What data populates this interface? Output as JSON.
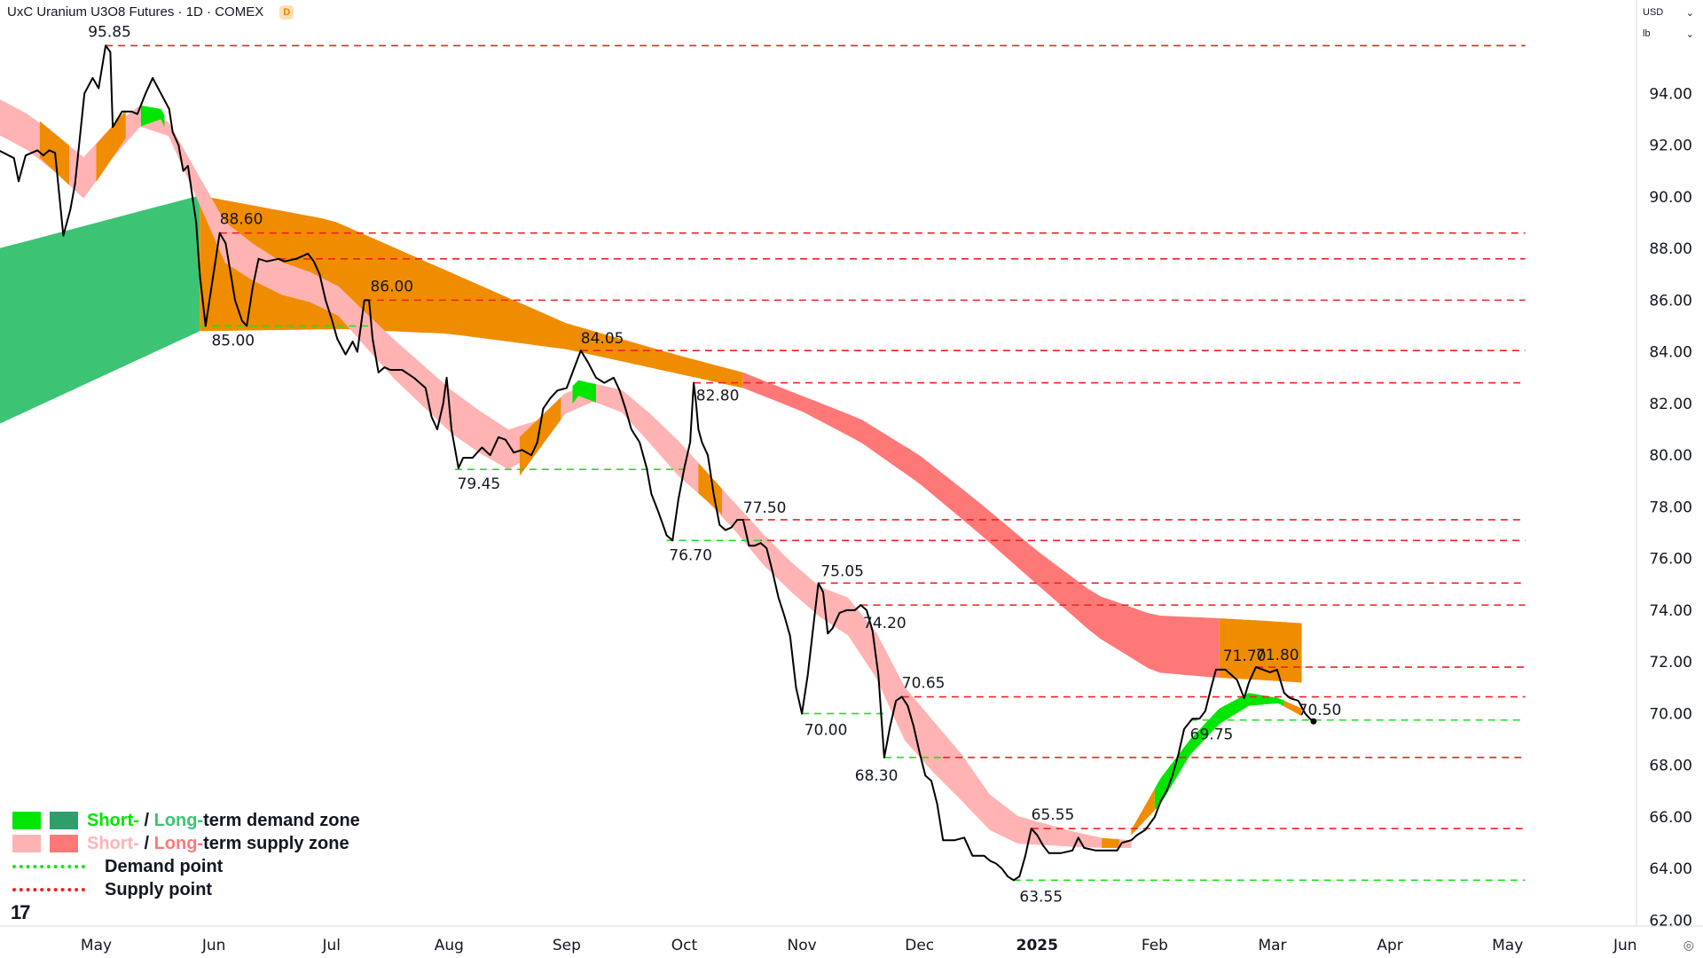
{
  "header": {
    "symbol": "UxC Uranium U3O8 Futures · 1D · COMEX",
    "badge": "D"
  },
  "price_scale": {
    "currency": "USD",
    "unit": "lb"
  },
  "legend": {
    "demand_short": "Short-",
    "demand_slash": " / ",
    "demand_long": "Long-",
    "demand_rest": "term demand zone",
    "supply_short": "Short-",
    "supply_slash": " / ",
    "supply_long": "Long-",
    "supply_rest": "term supply zone",
    "demand_point": "Demand point",
    "supply_point": "Supply point"
  },
  "logo": "17",
  "colors": {
    "price_line": "#000000",
    "short_demand": "#00e600",
    "long_demand": "#3cc474",
    "short_supply": "#ffb3b3",
    "long_supply": "#ff7878",
    "transition": "#f08c00",
    "demand_level": "#22dd22",
    "supply_level": "#ee2222"
  },
  "chart_data": {
    "type": "line",
    "title": "UxC Uranium U3O8 Futures · 1D · COMEX",
    "ylim": [
      62,
      96
    ],
    "y_ticks": [
      "62.00",
      "64.00",
      "66.00",
      "68.00",
      "70.00",
      "72.00",
      "74.00",
      "76.00",
      "78.00",
      "80.00",
      "82.00",
      "84.00",
      "86.00",
      "88.00",
      "90.00",
      "92.00",
      "94.00"
    ],
    "x_ticks": [
      "May",
      "Jun",
      "Jul",
      "Aug",
      "Sep",
      "Oct",
      "Nov",
      "Dec",
      "2025",
      "Feb",
      "Mar",
      "Apr",
      "May",
      "Jun"
    ],
    "x_tick_pos": [
      0.5,
      1.5,
      2.5,
      3.5,
      4.5,
      5.5,
      6.5,
      7.5,
      8.5,
      9.5,
      10.5,
      11.5,
      12.5,
      13.5
    ],
    "x_range": [
      -0.33,
      13.5
    ],
    "price": [
      [
        -0.33,
        91.8
      ],
      [
        -0.2,
        91.5
      ],
      [
        -0.16,
        90.6
      ],
      [
        -0.1,
        91.6
      ],
      [
        0.0,
        91.8
      ],
      [
        0.05,
        91.6
      ],
      [
        0.1,
        91.8
      ],
      [
        0.15,
        91.7
      ],
      [
        0.22,
        88.5
      ],
      [
        0.28,
        89.5
      ],
      [
        0.32,
        90.5
      ],
      [
        0.4,
        94
      ],
      [
        0.47,
        94.6
      ],
      [
        0.52,
        94.2
      ],
      [
        0.58,
        95.85
      ],
      [
        0.62,
        95.6
      ],
      [
        0.64,
        92.7
      ],
      [
        0.72,
        93.3
      ],
      [
        0.8,
        93.3
      ],
      [
        0.85,
        93.2
      ],
      [
        0.92,
        94
      ],
      [
        0.98,
        94.6
      ],
      [
        1.05,
        94
      ],
      [
        1.12,
        93.4
      ],
      [
        1.15,
        92.5
      ],
      [
        1.2,
        92
      ],
      [
        1.24,
        91
      ],
      [
        1.28,
        91.2
      ],
      [
        1.35,
        89
      ],
      [
        1.38,
        87
      ],
      [
        1.43,
        85
      ],
      [
        1.48,
        86.5
      ],
      [
        1.55,
        88.6
      ],
      [
        1.6,
        88.2
      ],
      [
        1.68,
        86
      ],
      [
        1.74,
        85.2
      ],
      [
        1.78,
        85
      ],
      [
        1.83,
        86.5
      ],
      [
        1.88,
        87.6
      ],
      [
        1.95,
        87.5
      ],
      [
        2.05,
        87.6
      ],
      [
        2.1,
        87.5
      ],
      [
        2.2,
        87.6
      ],
      [
        2.3,
        87.8
      ],
      [
        2.35,
        87.5
      ],
      [
        2.4,
        87
      ],
      [
        2.45,
        86
      ],
      [
        2.5,
        85.3
      ],
      [
        2.55,
        84.5
      ],
      [
        2.62,
        83.9
      ],
      [
        2.68,
        84.4
      ],
      [
        2.72,
        84
      ],
      [
        2.78,
        86
      ],
      [
        2.82,
        86
      ],
      [
        2.85,
        84.5
      ],
      [
        2.9,
        83.2
      ],
      [
        2.95,
        83.4
      ],
      [
        3.0,
        83.3
      ],
      [
        3.1,
        83.3
      ],
      [
        3.2,
        83
      ],
      [
        3.3,
        82.6
      ],
      [
        3.35,
        81.5
      ],
      [
        3.4,
        81
      ],
      [
        3.45,
        82
      ],
      [
        3.48,
        83
      ],
      [
        3.52,
        81
      ],
      [
        3.58,
        79.5
      ],
      [
        3.62,
        79.9
      ],
      [
        3.7,
        79.9
      ],
      [
        3.78,
        80.3
      ],
      [
        3.85,
        80
      ],
      [
        3.92,
        80.7
      ],
      [
        3.98,
        80.6
      ],
      [
        4.05,
        80.1
      ],
      [
        4.12,
        80.2
      ],
      [
        4.2,
        80
      ],
      [
        4.25,
        80.5
      ],
      [
        4.3,
        81.8
      ],
      [
        4.36,
        82.2
      ],
      [
        4.42,
        82.5
      ],
      [
        4.5,
        82.6
      ],
      [
        4.55,
        83.2
      ],
      [
        4.62,
        84.05
      ],
      [
        4.68,
        83.6
      ],
      [
        4.75,
        83
      ],
      [
        4.82,
        82.8
      ],
      [
        4.9,
        83
      ],
      [
        4.95,
        82.5
      ],
      [
        5.0,
        81.8
      ],
      [
        5.05,
        81
      ],
      [
        5.12,
        80.5
      ],
      [
        5.18,
        79.5
      ],
      [
        5.22,
        78.5
      ],
      [
        5.28,
        77.8
      ],
      [
        5.35,
        76.9
      ],
      [
        5.4,
        76.7
      ],
      [
        5.45,
        78.3
      ],
      [
        5.5,
        79.5
      ],
      [
        5.55,
        80.5
      ],
      [
        5.58,
        82.8
      ],
      [
        5.6,
        82
      ],
      [
        5.62,
        81
      ],
      [
        5.65,
        80.5
      ],
      [
        5.7,
        80
      ],
      [
        5.75,
        78.5
      ],
      [
        5.8,
        77.3
      ],
      [
        5.85,
        77.1
      ],
      [
        5.9,
        77.2
      ],
      [
        5.95,
        77.5
      ],
      [
        6.0,
        77.5
      ],
      [
        6.05,
        76.5
      ],
      [
        6.1,
        76.5
      ],
      [
        6.15,
        76.6
      ],
      [
        6.2,
        76.4
      ],
      [
        6.25,
        75.5
      ],
      [
        6.3,
        74.5
      ],
      [
        6.35,
        73.8
      ],
      [
        6.4,
        73
      ],
      [
        6.45,
        71
      ],
      [
        6.5,
        70
      ],
      [
        6.55,
        71.5
      ],
      [
        6.6,
        73.5
      ],
      [
        6.64,
        75.05
      ],
      [
        6.68,
        74.7
      ],
      [
        6.72,
        73.1
      ],
      [
        6.76,
        73.3
      ],
      [
        6.82,
        73.9
      ],
      [
        6.88,
        74
      ],
      [
        6.95,
        74
      ],
      [
        7.0,
        74.2
      ],
      [
        7.05,
        74
      ],
      [
        7.1,
        73.2
      ],
      [
        7.15,
        71.5
      ],
      [
        7.2,
        68.3
      ],
      [
        7.25,
        69.5
      ],
      [
        7.3,
        70.5
      ],
      [
        7.35,
        70.65
      ],
      [
        7.4,
        70.3
      ],
      [
        7.45,
        69.5
      ],
      [
        7.5,
        68.5
      ],
      [
        7.55,
        67.6
      ],
      [
        7.6,
        67.4
      ],
      [
        7.65,
        66.5
      ],
      [
        7.7,
        65.1
      ],
      [
        7.8,
        65.1
      ],
      [
        7.88,
        65.2
      ],
      [
        7.95,
        64.5
      ],
      [
        8.0,
        64.5
      ],
      [
        8.05,
        64.5
      ],
      [
        8.1,
        64.3
      ],
      [
        8.15,
        64.2
      ],
      [
        8.2,
        64.0
      ],
      [
        8.25,
        63.7
      ],
      [
        8.3,
        63.55
      ],
      [
        8.35,
        63.7
      ],
      [
        8.4,
        64.5
      ],
      [
        8.45,
        65.55
      ],
      [
        8.5,
        65.3
      ],
      [
        8.55,
        64.9
      ],
      [
        8.6,
        64.6
      ],
      [
        8.7,
        64.6
      ],
      [
        8.8,
        64.7
      ],
      [
        8.85,
        65.2
      ],
      [
        8.9,
        64.8
      ],
      [
        9.0,
        64.7
      ],
      [
        9.1,
        64.7
      ],
      [
        9.18,
        64.7
      ],
      [
        9.22,
        65.0
      ],
      [
        9.3,
        65.1
      ],
      [
        9.35,
        65.3
      ],
      [
        9.42,
        65.5
      ],
      [
        9.5,
        66.0
      ],
      [
        9.55,
        66.6
      ],
      [
        9.6,
        67.0
      ],
      [
        9.65,
        67.6
      ],
      [
        9.7,
        68.4
      ],
      [
        9.75,
        69.4
      ],
      [
        9.82,
        69.8
      ],
      [
        9.88,
        69.8
      ],
      [
        9.93,
        70.1
      ],
      [
        9.98,
        71.0
      ],
      [
        10.02,
        71.7
      ],
      [
        10.1,
        71.7
      ],
      [
        10.15,
        71.5
      ],
      [
        10.2,
        71.3
      ],
      [
        10.26,
        70.6
      ],
      [
        10.3,
        71.2
      ],
      [
        10.36,
        71.8
      ],
      [
        10.42,
        71.7
      ],
      [
        10.48,
        71.6
      ],
      [
        10.54,
        71.7
      ],
      [
        10.6,
        70.8
      ],
      [
        10.65,
        70.6
      ],
      [
        10.72,
        70.5
      ],
      [
        10.78,
        70.0
      ],
      [
        10.82,
        69.8
      ],
      [
        10.85,
        69.7
      ]
    ],
    "long_demand_zone": {
      "x": [
        -0.33,
        1.38
      ],
      "upper": [
        88.0,
        90.05
      ],
      "lower": [
        81.2,
        84.8
      ],
      "extension_to_x": 2.9,
      "extension_upper": 85.0,
      "extension_lower": 84.9
    },
    "long_supply_zone": {
      "x": [
        1.38,
        2.5,
        3.5,
        4.5,
        5.5,
        6.0,
        6.5,
        7.0,
        7.5,
        8.0,
        8.5,
        9.0,
        9.5,
        10.0,
        10.4,
        10.75
      ],
      "upper": [
        90.05,
        89.1,
        87.1,
        85.1,
        83.8,
        83.2,
        82.3,
        81.4,
        80.0,
        78.2,
        76.3,
        74.6,
        73.8,
        73.7,
        73.6,
        73.5
      ],
      "lower": [
        84.8,
        84.9,
        84.7,
        84.1,
        83.1,
        82.6,
        81.7,
        80.5,
        78.9,
        77.0,
        75.0,
        73.0,
        71.6,
        71.4,
        71.3,
        71.2
      ],
      "orange_until_x": 6.0,
      "orange_from_x": 10.05
    },
    "short_supply_zone": {
      "x": [
        -0.33,
        0.0,
        0.4,
        0.8,
        1.05,
        1.35,
        1.6,
        2.0,
        2.5,
        3.0,
        3.6,
        4.1,
        4.6,
        5.0,
        5.4,
        5.8,
        6.2,
        6.6,
        7.0,
        7.4,
        7.8,
        8.2,
        8.6,
        9.0,
        9.3
      ],
      "upper": [
        93.8,
        93.0,
        91.5,
        93.6,
        93.4,
        91.0,
        89.0,
        87.6,
        86.8,
        84.6,
        82.2,
        80.7,
        82.9,
        82.5,
        80.8,
        78.8,
        76.8,
        75.0,
        74.3,
        70.8,
        68.8,
        66.2,
        65.7,
        65.2,
        65.1
      ],
      "lower": [
        92.4,
        91.6,
        89.9,
        92.6,
        93.0,
        90.0,
        87.4,
        86.3,
        85.7,
        83.1,
        80.5,
        79.2,
        82.3,
        81.6,
        79.4,
        77.8,
        75.6,
        73.9,
        72.7,
        68.7,
        66.9,
        65.0,
        64.9,
        64.8,
        64.8
      ],
      "orange": [
        [
          0.02,
          0.27
        ],
        [
          0.5,
          0.75
        ],
        [
          4.1,
          4.45
        ],
        [
          5.62,
          5.82
        ],
        [
          9.05,
          9.2
        ]
      ]
    },
    "short_demand_zone": {
      "x": [
        9.3,
        9.55,
        9.8,
        10.05,
        10.3,
        10.55,
        10.75
      ],
      "upper": [
        65.5,
        67.5,
        69.0,
        70.2,
        70.8,
        70.6,
        70.2
      ],
      "lower": [
        65.3,
        66.5,
        68.4,
        69.6,
        70.3,
        70.4,
        69.9
      ],
      "top_green": [
        [
          0.82,
          1.0
        ]
      ]
    },
    "demand_points": [
      {
        "value": 85.0,
        "label": "85.00",
        "x": [
          1.38,
          2.85
        ]
      },
      {
        "value": 79.45,
        "label": "79.45",
        "x": [
          3.55,
          5.55
        ]
      },
      {
        "value": 76.7,
        "label": "76.70",
        "x": [
          5.35,
          6.2
        ]
      },
      {
        "value": 70.0,
        "label": "70.00",
        "x": [
          6.5,
          7.2
        ]
      },
      {
        "value": 68.3,
        "label": "68.30",
        "x": [
          7.2,
          7.7
        ]
      },
      {
        "value": 63.55,
        "label": "63.55",
        "x": [
          8.3,
          12.65
        ]
      },
      {
        "value": 69.75,
        "label": "69.75",
        "x": [
          9.8,
          12.65
        ]
      }
    ],
    "supply_points": [
      {
        "value": 95.85,
        "label": "95.85",
        "x": [
          0.58,
          12.65
        ]
      },
      {
        "value": 88.6,
        "label": "88.60",
        "x": [
          1.55,
          12.65
        ]
      },
      {
        "value": 87.6,
        "label": "",
        "x": [
          2.05,
          12.65
        ]
      },
      {
        "value": 86.0,
        "label": "86.00",
        "x": [
          2.78,
          12.65
        ]
      },
      {
        "value": 84.05,
        "label": "84.05",
        "x": [
          4.62,
          12.65
        ]
      },
      {
        "value": 82.8,
        "label": "82.80",
        "x": [
          5.58,
          12.65
        ]
      },
      {
        "value": 77.5,
        "label": "77.50",
        "x": [
          6.0,
          12.65
        ]
      },
      {
        "value": 76.7,
        "label": "",
        "x": [
          6.1,
          12.65
        ]
      },
      {
        "value": 75.05,
        "label": "75.05",
        "x": [
          6.64,
          12.65
        ]
      },
      {
        "value": 74.2,
        "label": "74.20",
        "x": [
          7.0,
          12.65
        ]
      },
      {
        "value": 71.8,
        "label": "71.80",
        "x": [
          10.36,
          12.65
        ]
      },
      {
        "value": 70.65,
        "label": "70.65",
        "x": [
          7.35,
          12.65
        ]
      },
      {
        "value": 68.3,
        "label": "",
        "x": [
          7.7,
          12.65
        ]
      },
      {
        "value": 65.55,
        "label": "65.55",
        "x": [
          8.45,
          12.65
        ]
      }
    ],
    "point_labels": [
      {
        "text": "71.70",
        "x": 10.08,
        "y": 71.7
      },
      {
        "text": "70.50",
        "x": 10.72,
        "y": 70.5
      }
    ]
  }
}
